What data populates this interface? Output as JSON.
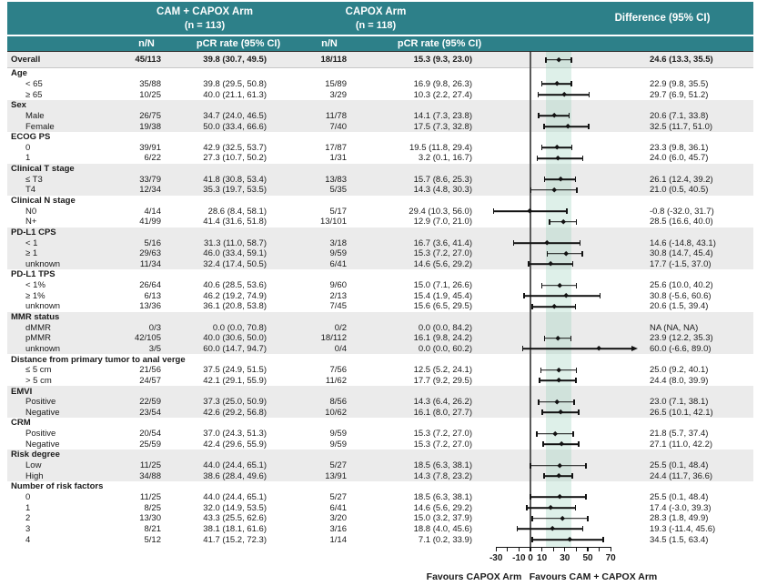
{
  "header": {
    "arm1_title": "CAM + CAPOX Arm",
    "arm1_n": "(n = 113)",
    "arm2_title": "CAPOX Arm",
    "arm2_n": "(n = 118)",
    "diff_title": "Difference (95% CI)",
    "nn_label": "n/N",
    "pcr_label": "pCR rate (95% CI)"
  },
  "colors": {
    "header_teal": "#2d8089",
    "row_shade_gray": "#ebebeb",
    "overall_ci_band": "rgba(146,205,181,0.30)",
    "marker_black": "#121212",
    "zero_line_gray": "#5a5a5a"
  },
  "chart_data": {
    "type": "scatter",
    "variant": "forest-plot",
    "x_axis": {
      "tick_start": -30,
      "tick_end": 70,
      "tick_step": 10,
      "labeled_ticks": [
        -30,
        -10,
        0,
        10,
        30,
        50,
        70
      ],
      "reference_line": 0
    },
    "shaded_band": {
      "from": 13.3,
      "to": 35.5
    },
    "footer": {
      "left_label": "Favours CAPOX Arm",
      "right_label": "Favours CAM + CAPOX Arm"
    },
    "rows": [
      {
        "kind": "overall",
        "shaded": true,
        "label": "Overall",
        "cam_nN": "45/113",
        "cam_pcr": "39.8 (30.7, 49.5)",
        "capox_nN": "18/118",
        "capox_pcr": "15.3 (9.3, 23.0)",
        "diff": "24.6 (13.3, 35.5)",
        "est": 24.6,
        "lo": 13.3,
        "hi": 35.5
      },
      {
        "kind": "group",
        "shaded": false,
        "label": "Age"
      },
      {
        "kind": "item",
        "shaded": false,
        "label": "< 65",
        "cam_nN": "35/88",
        "cam_pcr": "39.8 (29.5, 50.8)",
        "capox_nN": "15/89",
        "capox_pcr": "16.9 (9.8, 26.3)",
        "diff": "22.9 (9.8, 35.5)",
        "est": 22.9,
        "lo": 9.8,
        "hi": 35.5
      },
      {
        "kind": "item",
        "shaded": false,
        "label": "≥ 65",
        "cam_nN": "10/25",
        "cam_pcr": "40.0 (21.1, 61.3)",
        "capox_nN": "3/29",
        "capox_pcr": "10.3 (2.2, 27.4)",
        "diff": "29.7 (6.9, 51.2)",
        "est": 29.7,
        "lo": 6.9,
        "hi": 51.2
      },
      {
        "kind": "group",
        "shaded": true,
        "label": "Sex"
      },
      {
        "kind": "item",
        "shaded": true,
        "label": "Male",
        "cam_nN": "26/75",
        "cam_pcr": "34.7 (24.0, 46.5)",
        "capox_nN": "11/78",
        "capox_pcr": "14.1 (7.3, 23.8)",
        "diff": "20.6 (7.1, 33.8)",
        "est": 20.6,
        "lo": 7.1,
        "hi": 33.8
      },
      {
        "kind": "item",
        "shaded": true,
        "label": "Female",
        "cam_nN": "19/38",
        "cam_pcr": "50.0 (33.4, 66.6)",
        "capox_nN": "7/40",
        "capox_pcr": "17.5 (7.3, 32.8)",
        "diff": "32.5 (11.7, 51.0)",
        "est": 32.5,
        "lo": 11.7,
        "hi": 51.0
      },
      {
        "kind": "group",
        "shaded": false,
        "label": "ECOG PS"
      },
      {
        "kind": "item",
        "shaded": false,
        "label": "0",
        "cam_nN": "39/91",
        "cam_pcr": "42.9 (32.5, 53.7)",
        "capox_nN": "17/87",
        "capox_pcr": "19.5 (11.8, 29.4)",
        "diff": "23.3 (9.8, 36.1)",
        "est": 23.3,
        "lo": 9.8,
        "hi": 36.1
      },
      {
        "kind": "item",
        "shaded": false,
        "label": "1",
        "cam_nN": "6/22",
        "cam_pcr": "27.3 (10.7, 50.2)",
        "capox_nN": "1/31",
        "capox_pcr": "3.2 (0.1, 16.7)",
        "diff": "24.0 (6.0, 45.7)",
        "est": 24.0,
        "lo": 6.0,
        "hi": 45.7
      },
      {
        "kind": "group",
        "shaded": true,
        "label": "Clinical T stage"
      },
      {
        "kind": "item",
        "shaded": true,
        "label": "≤ T3",
        "cam_nN": "33/79",
        "cam_pcr": "41.8 (30.8, 53.4)",
        "capox_nN": "13/83",
        "capox_pcr": "15.7 (8.6, 25.3)",
        "diff": "26.1 (12.4, 39.2)",
        "est": 26.1,
        "lo": 12.4,
        "hi": 39.2
      },
      {
        "kind": "item",
        "shaded": true,
        "label": "T4",
        "cam_nN": "12/34",
        "cam_pcr": "35.3 (19.7, 53.5)",
        "capox_nN": "5/35",
        "capox_pcr": "14.3 (4.8, 30.3)",
        "diff": "21.0 (0.5, 40.5)",
        "est": 21.0,
        "lo": 0.5,
        "hi": 40.5
      },
      {
        "kind": "group",
        "shaded": false,
        "label": "Clinical N stage"
      },
      {
        "kind": "item",
        "shaded": false,
        "label": "N0",
        "cam_nN": "4/14",
        "cam_pcr": "28.6 (8.4, 58.1)",
        "capox_nN": "5/17",
        "capox_pcr": "29.4 (10.3, 56.0)",
        "diff": "-0.8 (-32.0, 31.7)",
        "est": -0.8,
        "lo": -32.0,
        "hi": 31.7
      },
      {
        "kind": "item",
        "shaded": false,
        "label": "N+",
        "cam_nN": "41/99",
        "cam_pcr": "41.4 (31.6, 51.8)",
        "capox_nN": "13/101",
        "capox_pcr": "12.9 (7.0, 21.0)",
        "diff": "28.5 (16.6, 40.0)",
        "est": 28.5,
        "lo": 16.6,
        "hi": 40.0
      },
      {
        "kind": "group",
        "shaded": true,
        "label": "PD-L1 CPS"
      },
      {
        "kind": "item",
        "shaded": true,
        "label": "< 1",
        "cam_nN": "5/16",
        "cam_pcr": "31.3 (11.0, 58.7)",
        "capox_nN": "3/18",
        "capox_pcr": "16.7 (3.6, 41.4)",
        "diff": "14.6 (-14.8, 43.1)",
        "est": 14.6,
        "lo": -14.8,
        "hi": 43.1
      },
      {
        "kind": "item",
        "shaded": true,
        "label": "≥ 1",
        "cam_nN": "29/63",
        "cam_pcr": "46.0 (33.4, 59.1)",
        "capox_nN": "9/59",
        "capox_pcr": "15.3 (7.2, 27.0)",
        "diff": "30.8 (14.7, 45.4)",
        "est": 30.8,
        "lo": 14.7,
        "hi": 45.4
      },
      {
        "kind": "item",
        "shaded": true,
        "label": "unknown",
        "cam_nN": "11/34",
        "cam_pcr": "32.4 (17.4, 50.5)",
        "capox_nN": "6/41",
        "capox_pcr": "14.6 (5.6, 29.2)",
        "diff": "17.7 (-1.5, 37.0)",
        "est": 17.7,
        "lo": -1.5,
        "hi": 37.0
      },
      {
        "kind": "group",
        "shaded": false,
        "label": "PD-L1 TPS"
      },
      {
        "kind": "item",
        "shaded": false,
        "label": "< 1%",
        "cam_nN": "26/64",
        "cam_pcr": "40.6 (28.5, 53.6)",
        "capox_nN": "9/60",
        "capox_pcr": "15.0 (7.1, 26.6)",
        "diff": "25.6 (10.0, 40.2)",
        "est": 25.6,
        "lo": 10.0,
        "hi": 40.2
      },
      {
        "kind": "item",
        "shaded": false,
        "label": "≥ 1%",
        "cam_nN": "6/13",
        "cam_pcr": "46.2 (19.2, 74.9)",
        "capox_nN": "2/13",
        "capox_pcr": "15.4 (1.9, 45.4)",
        "diff": "30.8 (-5.6, 60.6)",
        "est": 30.8,
        "lo": -5.6,
        "hi": 60.6
      },
      {
        "kind": "item",
        "shaded": false,
        "label": "unknown",
        "cam_nN": "13/36",
        "cam_pcr": "36.1 (20.8, 53.8)",
        "capox_nN": "7/45",
        "capox_pcr": "15.6 (6.5, 29.5)",
        "diff": "20.6 (1.5, 39.4)",
        "est": 20.6,
        "lo": 1.5,
        "hi": 39.4
      },
      {
        "kind": "group",
        "shaded": true,
        "label": "MMR status"
      },
      {
        "kind": "item",
        "shaded": true,
        "label": "dMMR",
        "cam_nN": "0/3",
        "cam_pcr": "0.0 (0.0, 70.8)",
        "capox_nN": "0/2",
        "capox_pcr": "0.0 (0.0, 84.2)",
        "diff": "NA (NA, NA)",
        "est": null,
        "lo": null,
        "hi": null
      },
      {
        "kind": "item",
        "shaded": true,
        "label": "pMMR",
        "cam_nN": "42/105",
        "cam_pcr": "40.0 (30.6, 50.0)",
        "capox_nN": "18/112",
        "capox_pcr": "16.1 (9.8, 24.2)",
        "diff": "23.9 (12.2, 35.3)",
        "est": 23.9,
        "lo": 12.2,
        "hi": 35.3
      },
      {
        "kind": "item",
        "shaded": true,
        "label": "unknown",
        "cam_nN": "3/5",
        "cam_pcr": "60.0 (14.7, 94.7)",
        "capox_nN": "0/4",
        "capox_pcr": "0.0 (0.0, 60.2)",
        "diff": "60.0 (-6.6, 89.0)",
        "est": 60.0,
        "lo": -6.6,
        "hi": 89.0,
        "arrow": "right"
      },
      {
        "kind": "group",
        "shaded": false,
        "label": "Distance from primary tumor to anal verge"
      },
      {
        "kind": "item",
        "shaded": false,
        "label": "≤ 5 cm",
        "cam_nN": "21/56",
        "cam_pcr": "37.5 (24.9, 51.5)",
        "capox_nN": "7/56",
        "capox_pcr": "12.5 (5.2, 24.1)",
        "diff": "25.0 (9.2, 40.1)",
        "est": 25.0,
        "lo": 9.2,
        "hi": 40.1
      },
      {
        "kind": "item",
        "shaded": false,
        "label": "> 5 cm",
        "cam_nN": "24/57",
        "cam_pcr": "42.1 (29.1, 55.9)",
        "capox_nN": "11/62",
        "capox_pcr": "17.7 (9.2, 29.5)",
        "diff": "24.4 (8.0, 39.9)",
        "est": 24.4,
        "lo": 8.0,
        "hi": 39.9
      },
      {
        "kind": "group",
        "shaded": true,
        "label": "EMVI"
      },
      {
        "kind": "item",
        "shaded": true,
        "label": "Positive",
        "cam_nN": "22/59",
        "cam_pcr": "37.3 (25.0, 50.9)",
        "capox_nN": "8/56",
        "capox_pcr": "14.3 (6.4, 26.2)",
        "diff": "23.0 (7.1, 38.1)",
        "est": 23.0,
        "lo": 7.1,
        "hi": 38.1
      },
      {
        "kind": "item",
        "shaded": true,
        "label": "Negative",
        "cam_nN": "23/54",
        "cam_pcr": "42.6 (29.2, 56.8)",
        "capox_nN": "10/62",
        "capox_pcr": "16.1 (8.0, 27.7)",
        "diff": "26.5 (10.1, 42.1)",
        "est": 26.5,
        "lo": 10.1,
        "hi": 42.1
      },
      {
        "kind": "group",
        "shaded": false,
        "label": "CRM"
      },
      {
        "kind": "item",
        "shaded": false,
        "label": "Positive",
        "cam_nN": "20/54",
        "cam_pcr": "37.0 (24.3, 51.3)",
        "capox_nN": "9/59",
        "capox_pcr": "15.3 (7.2, 27.0)",
        "diff": "21.8 (5.7, 37.4)",
        "est": 21.8,
        "lo": 5.7,
        "hi": 37.4
      },
      {
        "kind": "item",
        "shaded": false,
        "label": "Negative",
        "cam_nN": "25/59",
        "cam_pcr": "42.4 (29.6, 55.9)",
        "capox_nN": "9/59",
        "capox_pcr": "15.3 (7.2, 27.0)",
        "diff": "27.1 (11.0, 42.2)",
        "est": 27.1,
        "lo": 11.0,
        "hi": 42.2
      },
      {
        "kind": "group",
        "shaded": true,
        "label": "Risk degree"
      },
      {
        "kind": "item",
        "shaded": true,
        "label": "Low",
        "cam_nN": "11/25",
        "cam_pcr": "44.0 (24.4, 65.1)",
        "capox_nN": "5/27",
        "capox_pcr": "18.5 (6.3, 38.1)",
        "diff": "25.5 (0.1, 48.4)",
        "est": 25.5,
        "lo": 0.1,
        "hi": 48.4
      },
      {
        "kind": "item",
        "shaded": true,
        "label": "High",
        "cam_nN": "34/88",
        "cam_pcr": "38.6 (28.4, 49.6)",
        "capox_nN": "13/91",
        "capox_pcr": "14.3 (7.8, 23.2)",
        "diff": "24.4 (11.7, 36.6)",
        "est": 24.4,
        "lo": 11.7,
        "hi": 36.6
      },
      {
        "kind": "group",
        "shaded": false,
        "label": "Number of risk factors"
      },
      {
        "kind": "item",
        "shaded": false,
        "label": "0",
        "cam_nN": "11/25",
        "cam_pcr": "44.0 (24.4, 65.1)",
        "capox_nN": "5/27",
        "capox_pcr": "18.5 (6.3, 38.1)",
        "diff": "25.5 (0.1, 48.4)",
        "est": 25.5,
        "lo": 0.1,
        "hi": 48.4
      },
      {
        "kind": "item",
        "shaded": false,
        "label": "1",
        "cam_nN": "8/25",
        "cam_pcr": "32.0 (14.9, 53.5)",
        "capox_nN": "6/41",
        "capox_pcr": "14.6 (5.6, 29.2)",
        "diff": "17.4 (-3.0, 39.3)",
        "est": 17.4,
        "lo": -3.0,
        "hi": 39.3
      },
      {
        "kind": "item",
        "shaded": false,
        "label": "2",
        "cam_nN": "13/30",
        "cam_pcr": "43.3 (25.5, 62.6)",
        "capox_nN": "3/20",
        "capox_pcr": "15.0 (3.2, 37.9)",
        "diff": "28.3 (1.8, 49.9)",
        "est": 28.3,
        "lo": 1.8,
        "hi": 49.9
      },
      {
        "kind": "item",
        "shaded": false,
        "label": "3",
        "cam_nN": "8/21",
        "cam_pcr": "38.1 (18.1, 61.6)",
        "capox_nN": "3/16",
        "capox_pcr": "18.8 (4.0, 45.6)",
        "diff": "19.3 (-11.4, 45.6)",
        "est": 19.3,
        "lo": -11.4,
        "hi": 45.6
      },
      {
        "kind": "item",
        "shaded": false,
        "label": "4",
        "cam_nN": "5/12",
        "cam_pcr": "41.7 (15.2, 72.3)",
        "capox_nN": "1/14",
        "capox_pcr": "7.1 (0.2, 33.9)",
        "diff": "34.5 (1.5, 63.4)",
        "est": 34.5,
        "lo": 1.5,
        "hi": 63.4
      }
    ]
  }
}
